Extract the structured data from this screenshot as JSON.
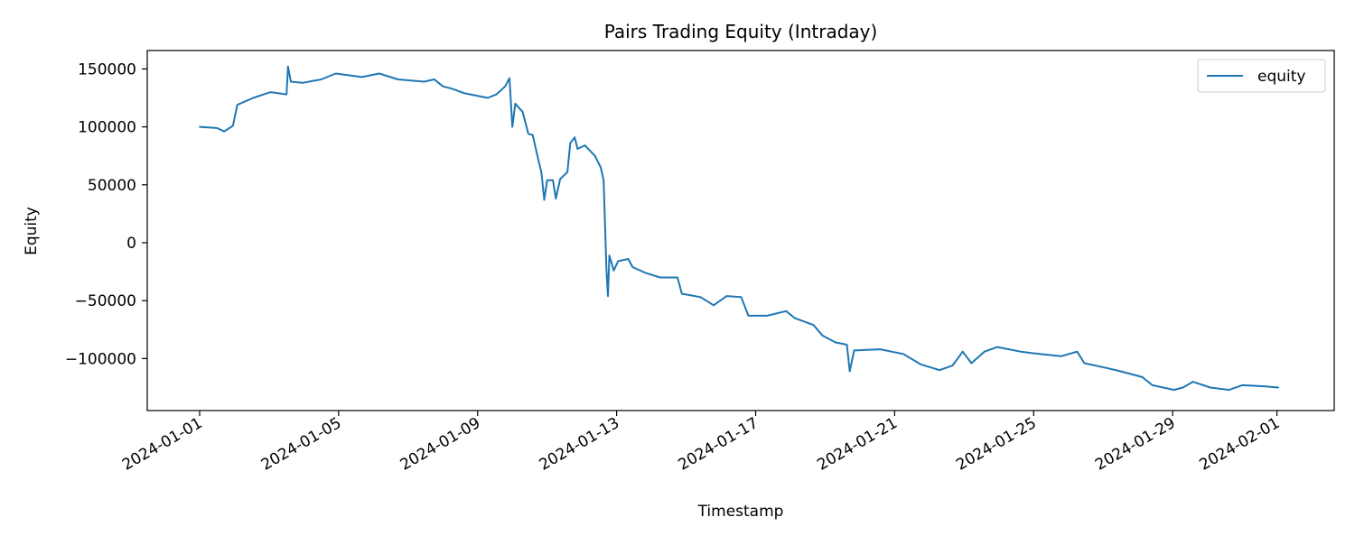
{
  "chart_data": {
    "type": "line",
    "title": "Pairs Trading Equity (Intraday)",
    "xlabel": "Timestamp",
    "ylabel": "Equity",
    "xlim": [
      "2023-12-30T13:00",
      "2024-02-02T12:00"
    ],
    "ylim": [
      -145000,
      165000
    ],
    "x_ticks": [
      "2024-01-01",
      "2024-01-05",
      "2024-01-09",
      "2024-01-13",
      "2024-01-17",
      "2024-01-21",
      "2024-01-25",
      "2024-01-29",
      "2024-02-01"
    ],
    "y_ticks": [
      150000,
      100000,
      50000,
      0,
      -50000,
      -100000
    ],
    "y_tick_labels": [
      "150000",
      "100000",
      "50000",
      "0",
      "−50000",
      "−100000"
    ],
    "grid": false,
    "legend_position": "top-right",
    "series": [
      {
        "name": "equity",
        "color": "#1f77b4",
        "x": [
          "2024-01-01T00:00",
          "2024-01-01T12:00",
          "2024-01-01T17:00",
          "2024-01-01T23:00",
          "2024-01-02T02:00",
          "2024-01-02T13:00",
          "2024-01-03T01:00",
          "2024-01-03T12:00",
          "2024-01-03T13:00",
          "2024-01-03T15:00",
          "2024-01-03T23:00",
          "2024-01-04T12:00",
          "2024-01-04T22:00",
          "2024-01-05T16:00",
          "2024-01-06T04:00",
          "2024-01-06T17:00",
          "2024-01-07T11:00",
          "2024-01-07T18:00",
          "2024-01-08T00:00",
          "2024-01-08T06:00",
          "2024-01-08T15:00",
          "2024-01-09T07:00",
          "2024-01-09T13:00",
          "2024-01-09T19:00",
          "2024-01-09T22:00",
          "2024-01-10T00:00",
          "2024-01-10T02:00",
          "2024-01-10T07:00",
          "2024-01-10T11:00",
          "2024-01-10T14:00",
          "2024-01-10T18:00",
          "2024-01-10T20:00",
          "2024-01-10T22:00",
          "2024-01-11T00:00",
          "2024-01-11T04:00",
          "2024-01-11T06:00",
          "2024-01-11T09:00",
          "2024-01-11T14:00",
          "2024-01-11T16:00",
          "2024-01-11T19:00",
          "2024-01-11T21:00",
          "2024-01-12T02:00",
          "2024-01-12T09:00",
          "2024-01-12T13:00",
          "2024-01-12T15:00",
          "2024-01-12T16:00",
          "2024-01-12T17:00",
          "2024-01-12T18:00",
          "2024-01-12T19:00",
          "2024-01-12T22:00",
          "2024-01-13T01:00",
          "2024-01-13T08:00",
          "2024-01-13T11:00",
          "2024-01-13T20:00",
          "2024-01-14T06:00",
          "2024-01-14T18:00",
          "2024-01-14T21:00",
          "2024-01-15T10:00",
          "2024-01-15T19:00",
          "2024-01-16T04:00",
          "2024-01-16T14:00",
          "2024-01-16T19:00",
          "2024-01-17T08:00",
          "2024-01-17T21:00",
          "2024-01-18T03:00",
          "2024-01-18T16:00",
          "2024-01-18T22:00",
          "2024-01-19T07:00",
          "2024-01-19T15:00",
          "2024-01-19T17:00",
          "2024-01-19T20:00",
          "2024-01-20T14:00",
          "2024-01-21T06:00",
          "2024-01-21T18:00",
          "2024-01-22T07:00",
          "2024-01-22T16:00",
          "2024-01-22T23:00",
          "2024-01-23T05:00",
          "2024-01-23T14:00",
          "2024-01-23T23:00",
          "2024-01-24T15:00",
          "2024-01-25T04:00",
          "2024-01-25T19:00",
          "2024-01-26T06:00",
          "2024-01-26T11:00",
          "2024-01-27T02:00",
          "2024-01-27T12:00",
          "2024-01-28T03:00",
          "2024-01-28T10:00",
          "2024-01-29T01:00",
          "2024-01-29T07:00",
          "2024-01-29T14:00",
          "2024-01-30T02:00",
          "2024-01-30T15:00",
          "2024-01-31T00:00",
          "2024-01-31T16:00",
          "2024-02-01T01:00"
        ],
        "values": [
          100000,
          99000,
          96000,
          101000,
          119000,
          125000,
          130000,
          128000,
          152000,
          139000,
          138000,
          141000,
          146000,
          143000,
          146000,
          141000,
          139000,
          141000,
          135000,
          133000,
          129000,
          125000,
          128000,
          135000,
          142000,
          100000,
          120000,
          113000,
          94000,
          93000,
          71000,
          61000,
          37000,
          54000,
          54000,
          38000,
          55000,
          61000,
          86000,
          91000,
          81000,
          84000,
          75000,
          65000,
          54000,
          15000,
          -24000,
          -46000,
          -11000,
          -24000,
          -16000,
          -14000,
          -21000,
          -26000,
          -30000,
          -30000,
          -44000,
          -47000,
          -54000,
          -46000,
          -47000,
          -63000,
          -63000,
          -59000,
          -65000,
          -71000,
          -80000,
          -86000,
          -88000,
          -111000,
          -93000,
          -92000,
          -96000,
          -105000,
          -110000,
          -106000,
          -94000,
          -104000,
          -94000,
          -90000,
          -94000,
          -96000,
          -98000,
          -94000,
          -104000,
          -108000,
          -111000,
          -116000,
          -123000,
          -127000,
          -125000,
          -120000,
          -125000,
          -127000,
          -123000,
          -124000,
          -125000
        ]
      }
    ]
  }
}
